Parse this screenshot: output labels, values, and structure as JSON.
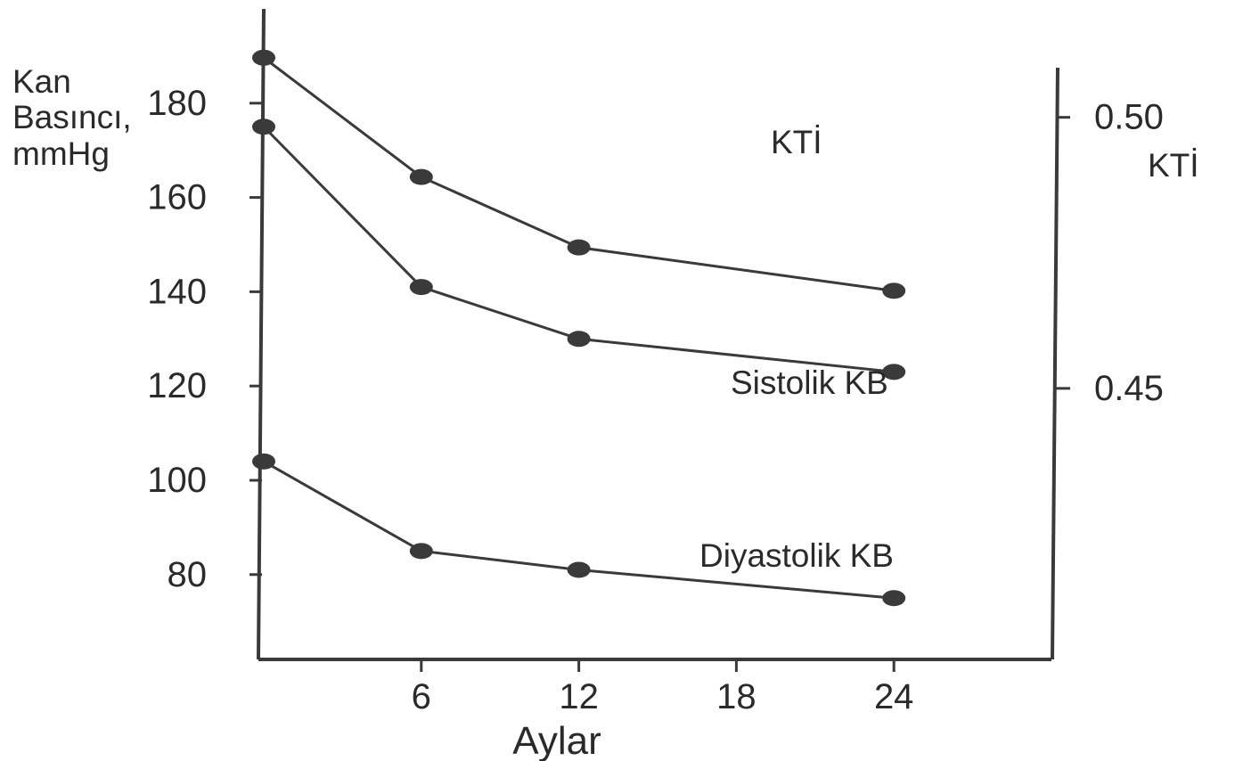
{
  "chart_data": {
    "type": "line",
    "xlabel": "Aylar",
    "ylabel_left": [
      "Kan",
      "Basıncı,",
      "mmHg"
    ],
    "ylabel_right": "KTİ",
    "x": [
      0,
      6,
      12,
      24
    ],
    "x_ticks": [
      6,
      12,
      18,
      24
    ],
    "x_tick_labels": [
      "6",
      "12",
      "18",
      "24"
    ],
    "xlim": [
      0,
      30
    ],
    "left_axis": {
      "ylim": [
        62,
        200
      ],
      "ticks": [
        80,
        100,
        120,
        140,
        160,
        180
      ],
      "tick_labels": [
        "80",
        "100",
        "120",
        "140",
        "160",
        "180"
      ]
    },
    "right_axis": {
      "ylim": [
        0.4,
        0.52
      ],
      "ticks": [
        0.45,
        0.5
      ],
      "tick_labels": [
        "0.45",
        "0.50"
      ]
    },
    "series": [
      {
        "name": "KTİ",
        "axis": "right",
        "values": [
          0.511,
          0.489,
          0.476,
          0.468
        ]
      },
      {
        "name": "Sistolik KB",
        "axis": "left",
        "values": [
          175,
          141,
          130,
          123
        ]
      },
      {
        "name": "Diyastolik KB",
        "axis": "left",
        "values": [
          104,
          85,
          81,
          75
        ]
      }
    ],
    "grid": false,
    "legend": "labels next to lines"
  }
}
